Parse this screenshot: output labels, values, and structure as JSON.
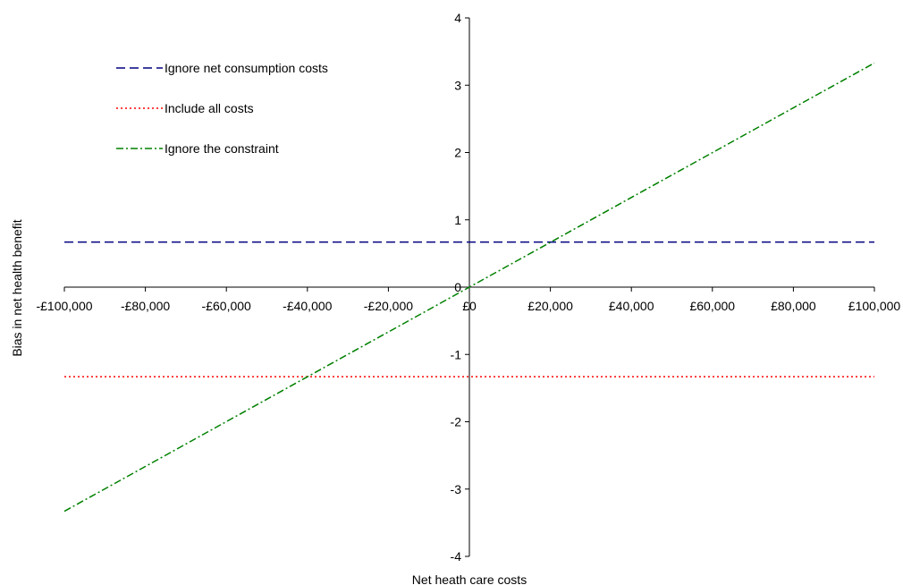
{
  "chart_data": {
    "type": "line",
    "title": "",
    "xlabel": "Net heath care costs",
    "ylabel": "Bias in net health benefit",
    "xlim": [
      -100000,
      100000
    ],
    "ylim": [
      -4,
      4
    ],
    "x_ticks": [
      -100000,
      -80000,
      -60000,
      -40000,
      -20000,
      0,
      20000,
      40000,
      60000,
      80000,
      100000
    ],
    "x_tick_labels": [
      "-£100,000",
      "-£80,000",
      "-£60,000",
      "-£40,000",
      "-£20,000",
      "£0",
      "£20,000",
      "£40,000",
      "£60,000",
      "£80,000",
      "£100,000"
    ],
    "y_ticks": [
      -4,
      -3,
      -2,
      -1,
      0,
      1,
      2,
      3,
      4
    ],
    "y_tick_labels": [
      "-4",
      "-3",
      "-2",
      "-1",
      "0",
      "1",
      "2",
      "3",
      "4"
    ],
    "grid": false,
    "legend_position": "top-left",
    "series": [
      {
        "name": "Ignore net consumption costs",
        "x": [
          -100000,
          100000
        ],
        "values": [
          0.67,
          0.67
        ],
        "color": "#000080",
        "line_style": "dashed"
      },
      {
        "name": "Include all costs",
        "x": [
          -100000,
          100000
        ],
        "values": [
          -1.33,
          -1.33
        ],
        "color": "#ff0000",
        "line_style": "dotted"
      },
      {
        "name": "Ignore the constraint",
        "x": [
          -100000,
          100000
        ],
        "values": [
          -3.33,
          3.33
        ],
        "color": "#008000",
        "line_style": "dash-dot"
      }
    ]
  }
}
